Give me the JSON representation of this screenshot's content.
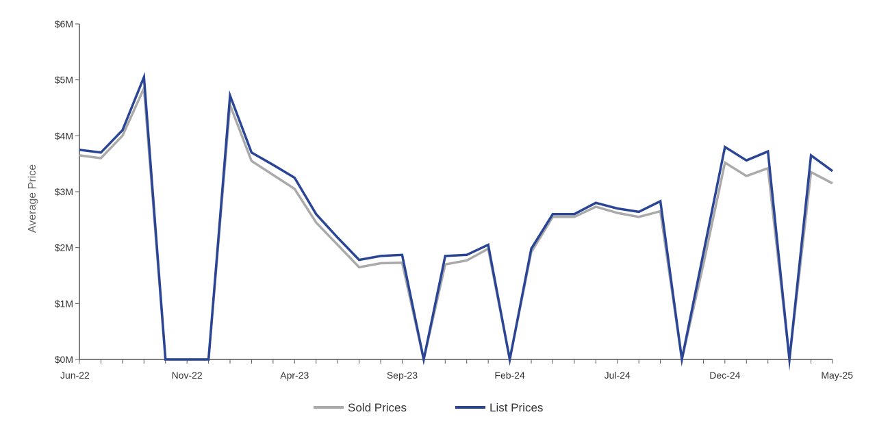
{
  "chart_data": {
    "type": "line",
    "title": "",
    "xlabel": "",
    "ylabel": "Average Price",
    "x": [
      "Jun-22",
      "Jul-22",
      "Aug-22",
      "Sep-22",
      "Oct-22",
      "Nov-22",
      "Dec-22",
      "Jan-23",
      "Feb-23",
      "Mar-23",
      "Apr-23",
      "May-23",
      "Jun-23",
      "Jul-23",
      "Aug-23",
      "Sep-23",
      "Oct-23",
      "Nov-23",
      "Dec-23",
      "Jan-24",
      "Feb-24",
      "Mar-24",
      "Apr-24",
      "May-24",
      "Jun-24",
      "Jul-24",
      "Aug-24",
      "Sep-24",
      "Oct-24",
      "Nov-24",
      "Dec-24",
      "Jan-25",
      "Feb-25",
      "Mar-25",
      "Apr-25",
      "May-25"
    ],
    "x_tick_labels": [
      "Jun-22",
      "Nov-22",
      "Apr-23",
      "Sep-23",
      "Feb-24",
      "Jul-24",
      "Dec-24",
      "May-25"
    ],
    "y_ticks": [
      0,
      1,
      2,
      3,
      4,
      5,
      6
    ],
    "y_tick_labels": [
      "$0M",
      "$1M",
      "$2M",
      "$3M",
      "$4M",
      "$5M",
      "$6M"
    ],
    "ylim": [
      0,
      6
    ],
    "y_unit": "millions of dollars",
    "grid": false,
    "legend_position": "bottom-center",
    "series": [
      {
        "name": "Sold Prices",
        "color": "#aaaaaa",
        "values": [
          3.65,
          3.6,
          4.0,
          4.85,
          0,
          0,
          0,
          4.55,
          3.55,
          3.3,
          3.05,
          2.45,
          2.05,
          1.65,
          1.72,
          1.73,
          0,
          1.7,
          1.77,
          1.98,
          0,
          1.92,
          2.55,
          2.55,
          2.73,
          2.62,
          2.55,
          2.65,
          0,
          1.7,
          3.52,
          3.28,
          3.42,
          0,
          3.35,
          3.15
        ]
      },
      {
        "name": "List Prices",
        "color": "#2a4595",
        "values": [
          3.75,
          3.7,
          4.1,
          5.05,
          0,
          0,
          0,
          4.72,
          3.7,
          3.48,
          3.25,
          2.6,
          2.18,
          1.78,
          1.85,
          1.87,
          0,
          1.85,
          1.87,
          2.05,
          0,
          1.98,
          2.6,
          2.6,
          2.8,
          2.7,
          2.64,
          2.83,
          0,
          1.9,
          3.8,
          3.56,
          3.72,
          0,
          3.65,
          3.37
        ]
      }
    ]
  }
}
